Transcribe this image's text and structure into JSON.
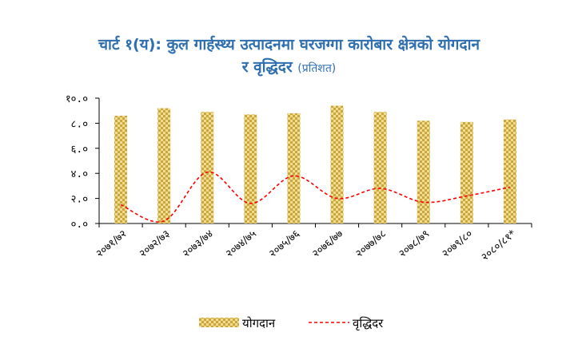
{
  "title_line1": "चार्ट १(य): कुल गार्हस्थ्य उत्पादनमा घरजग्गा कारोबार क्षेत्रको योगदान",
  "title_line2": "र वृद्धिदर",
  "title_unit": "(प्रतिशत)",
  "chart_data": {
    "type": "bar",
    "categories": [
      "२०७१/७२",
      "२०७२/७३",
      "२०७३/७४",
      "२०७४/७५",
      "२०७५/७६",
      "२०७६/७७",
      "२०७७/७८",
      "२०७८/७९",
      "२०७९/८०",
      "२०८०/८१*"
    ],
    "series": [
      {
        "name": "योगदान",
        "type": "bar",
        "values": [
          8.6,
          9.2,
          8.9,
          8.7,
          8.8,
          9.4,
          8.9,
          8.2,
          8.1,
          8.3
        ]
      },
      {
        "name": "वृद्धिदर",
        "type": "line",
        "values": [
          1.5,
          0.2,
          4.1,
          1.6,
          3.8,
          2.0,
          2.8,
          1.7,
          2.2,
          2.9
        ]
      }
    ],
    "ylim": [
      0,
      10
    ],
    "yticks": [
      "०.०",
      "२.०",
      "४.०",
      "६.०",
      "८.०",
      "१०.०"
    ],
    "ytick_values": [
      0,
      2,
      4,
      6,
      8,
      10
    ],
    "legend_position": "bottom",
    "grid": false,
    "colors": {
      "bar_fill": "#e6c87a",
      "bar_pattern": "#c9a640",
      "line": "#ff0000",
      "title": "#2f6fb0"
    }
  }
}
